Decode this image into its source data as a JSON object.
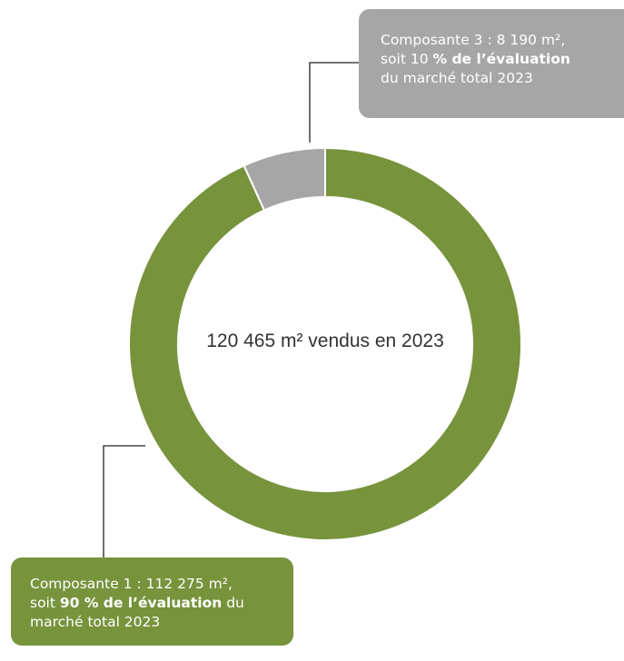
{
  "chart_data": {
    "type": "pie",
    "values": [
      112275,
      8190
    ],
    "colors": [
      "#77933c",
      "#a6a6a6"
    ],
    "center_label": "120 465 m² vendus en 2023",
    "annotations": [
      {
        "color": "#77933c",
        "lines": [
          [
            {
              "text": "Composante 1 : 112 275 m²,"
            }
          ],
          [
            {
              "text": "soit "
            },
            {
              "text": "90 % de l’évaluation",
              "bold": true
            },
            {
              "text": " du"
            }
          ],
          [
            {
              "text": "marché total 2023"
            }
          ]
        ]
      },
      {
        "color": "#a6a6a6",
        "lines": [
          [
            {
              "text": "Composante 3 : 8 190 m²,"
            }
          ],
          [
            {
              "text": "soit 10 "
            },
            {
              "text": "% de l’évaluation",
              "bold": true
            }
          ],
          [
            {
              "text": "du marché total 2023"
            }
          ]
        ]
      }
    ]
  }
}
